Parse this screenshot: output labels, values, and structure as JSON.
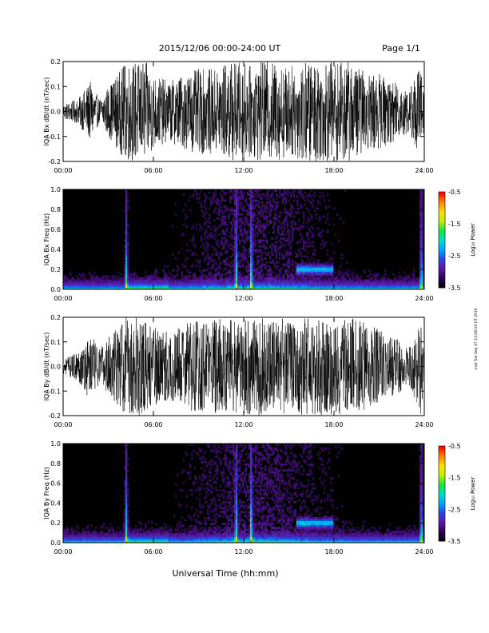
{
  "header": {
    "date_range": "2015/12/06  00:00-24:00 UT",
    "page": "Page 1/1"
  },
  "footer": {
    "xlabel": "Universal Time (hh:mm)",
    "side_stamp": "mat Tue Sep 17 11:08:19 UT 2019"
  },
  "colors": {
    "plot_background": "#000000",
    "trace": "#000000",
    "colormap": [
      "#000000",
      "#2a0050",
      "#5a1aa0",
      "#3040e0",
      "#00a0ff",
      "#00e0c0",
      "#20e040",
      "#c0f000",
      "#ffe000",
      "#ff8000",
      "#ff0000"
    ]
  },
  "chart_data": [
    {
      "type": "line",
      "panel": "Bx",
      "ylabel": "IQA Bx dB/dt (nT/sec)",
      "xlim": [
        "00:00",
        "24:00"
      ],
      "ylim": [
        -0.2,
        0.2
      ],
      "xticks": [
        "00:00",
        "06:00",
        "12:00",
        "18:00",
        "24:00"
      ],
      "yticks": [
        "-0.2",
        "-0.1",
        "0.0",
        "0.1",
        "0.2"
      ],
      "envelope": {
        "x_hours": [
          0,
          1,
          1.8,
          2.4,
          3,
          4.2,
          4.5,
          5.5,
          6,
          7,
          8,
          9,
          10,
          11,
          11.5,
          12,
          12.5,
          13,
          14,
          15,
          16,
          17,
          18,
          19,
          20,
          21,
          22,
          23,
          23.8,
          24
        ],
        "amplitude": [
          0.03,
          0.05,
          0.12,
          0.05,
          0.1,
          0.2,
          0.2,
          0.2,
          0.15,
          0.12,
          0.15,
          0.17,
          0.17,
          0.2,
          0.2,
          0.2,
          0.18,
          0.2,
          0.2,
          0.18,
          0.2,
          0.2,
          0.2,
          0.2,
          0.16,
          0.15,
          0.12,
          0.09,
          0.2,
          0.05
        ]
      }
    },
    {
      "type": "heatmap",
      "panel": "Bx spectrogram",
      "ylabel": "IQA Bx Freq (Hz)",
      "colorbar_label": "Log₁₀ Power",
      "colorbar_ticks": [
        "-0.5",
        "-1.5",
        "-2.5",
        "-3.5"
      ],
      "zlim": [
        -3.5,
        -0.5
      ],
      "xlim": [
        "00:00",
        "24:00"
      ],
      "ylim": [
        0.0,
        1.0
      ],
      "xticks": [
        "00:00",
        "06:00",
        "12:00",
        "18:00",
        "24:00"
      ],
      "yticks": [
        "0.0",
        "0.2",
        "0.4",
        "0.6",
        "0.8",
        "1.0"
      ],
      "features": {
        "bright_hours": [
          4.2,
          11.5,
          12.5,
          23.8
        ],
        "low_freq_band_hz": 0.05,
        "pc_band": {
          "start_hour": 15.5,
          "end_hour": 18,
          "freq_hz": 0.2
        }
      }
    },
    {
      "type": "line",
      "panel": "By",
      "ylabel": "IQA By dB/dt (nT/sec)",
      "xlim": [
        "00:00",
        "24:00"
      ],
      "ylim": [
        -0.2,
        0.2
      ],
      "xticks": [
        "00:00",
        "06:00",
        "12:00",
        "18:00",
        "24:00"
      ],
      "yticks": [
        "-0.2",
        "-0.1",
        "0.0",
        "0.1",
        "0.2"
      ],
      "envelope": {
        "x_hours": [
          0,
          1,
          1.8,
          2.4,
          3,
          4.2,
          4.5,
          5.5,
          6,
          7,
          8,
          9,
          10,
          11,
          11.5,
          12,
          12.5,
          13,
          14,
          15,
          16,
          17,
          18,
          19,
          20,
          21,
          22,
          23,
          23.8,
          24
        ],
        "amplitude": [
          0.03,
          0.06,
          0.14,
          0.07,
          0.12,
          0.2,
          0.2,
          0.2,
          0.16,
          0.14,
          0.17,
          0.19,
          0.19,
          0.2,
          0.2,
          0.2,
          0.2,
          0.2,
          0.2,
          0.19,
          0.2,
          0.2,
          0.2,
          0.2,
          0.18,
          0.15,
          0.12,
          0.08,
          0.2,
          0.04
        ]
      }
    },
    {
      "type": "heatmap",
      "panel": "By spectrogram",
      "ylabel": "IQA By Freq (Hz)",
      "colorbar_label": "Log₁₀ Power",
      "colorbar_ticks": [
        "-0.5",
        "-1.5",
        "-2.5",
        "-3.5"
      ],
      "zlim": [
        -3.5,
        -0.5
      ],
      "xlim": [
        "00:00",
        "24:00"
      ],
      "ylim": [
        0.0,
        1.0
      ],
      "xticks": [
        "00:00",
        "06:00",
        "12:00",
        "18:00",
        "24:00"
      ],
      "yticks": [
        "0.0",
        "0.2",
        "0.4",
        "0.6",
        "0.8",
        "1.0"
      ],
      "features": {
        "bright_hours": [
          4.2,
          11.5,
          12.5,
          23.8
        ],
        "low_freq_band_hz": 0.05,
        "pc_band": {
          "start_hour": 15.5,
          "end_hour": 18,
          "freq_hz": 0.2
        }
      }
    }
  ]
}
